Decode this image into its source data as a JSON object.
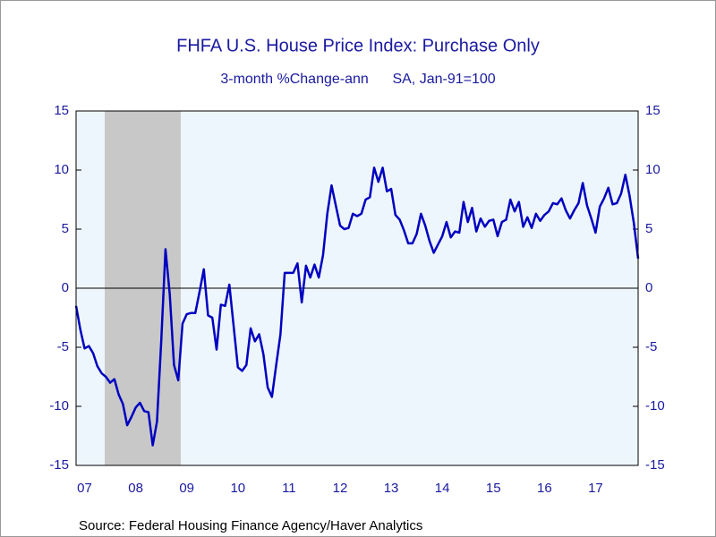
{
  "chart_data": {
    "type": "line",
    "title": "FHFA U.S. House Price Index: Purchase Only",
    "subtitle": "3-month %Change-ann      SA, Jan-91=100",
    "source": "Source:  Federal Housing Finance Agency/Haver Analytics",
    "categories": [
      null,
      null,
      "07",
      null,
      null,
      null,
      null,
      null,
      null,
      null,
      null,
      null,
      null,
      null,
      "08",
      null,
      null,
      null,
      null,
      null,
      null,
      null,
      null,
      null,
      null,
      null,
      "09",
      null,
      null,
      null,
      null,
      null,
      null,
      null,
      null,
      null,
      null,
      null,
      "10",
      null,
      null,
      null,
      null,
      null,
      null,
      null,
      null,
      null,
      null,
      null,
      "11",
      null,
      null,
      null,
      null,
      null,
      null,
      null,
      null,
      null,
      null,
      null,
      "12",
      null,
      null,
      null,
      null,
      null,
      null,
      null,
      null,
      null,
      null,
      null,
      "13",
      null,
      null,
      null,
      null,
      null,
      null,
      null,
      null,
      null,
      null,
      null,
      "14",
      null,
      null,
      null,
      null,
      null,
      null,
      null,
      null,
      null,
      null,
      null,
      "15",
      null,
      null,
      null,
      null,
      null,
      null,
      null,
      null,
      null,
      null,
      null,
      "16",
      null,
      null,
      null,
      null,
      null,
      null,
      null,
      null,
      null,
      null,
      null,
      "17",
      null,
      null,
      null,
      null,
      null,
      null,
      null,
      null,
      null,
      null
    ],
    "series": [
      {
        "color": "#0000c0",
        "values": [
          -1.5,
          -3.5,
          -5.1,
          -4.9,
          -5.5,
          -6.6,
          -7.2,
          -7.5,
          -8.0,
          -7.7,
          -9.0,
          -9.8,
          -11.6,
          -10.9,
          -10.1,
          -9.7,
          -10.4,
          -10.5,
          -13.3,
          -11.3,
          -4.5,
          3.3,
          -0.5,
          -6.5,
          -7.8,
          -3.0,
          -2.2,
          -2.1,
          -2.1,
          -0.3,
          1.6,
          -2.3,
          -2.5,
          -5.2,
          -1.4,
          -1.5,
          0.3,
          -3.2,
          -6.7,
          -7.0,
          -6.5,
          -3.4,
          -4.5,
          -3.9,
          -5.6,
          -8.4,
          -9.2,
          -6.5,
          -3.9,
          1.3,
          1.3,
          1.3,
          2.1,
          -1.2,
          1.9,
          0.9,
          2.0,
          0.9,
          2.8,
          6.3,
          8.7,
          7.0,
          5.3,
          5.0,
          5.1,
          6.3,
          6.1,
          6.3,
          7.5,
          7.7,
          10.2,
          9.0,
          10.2,
          8.2,
          8.4,
          6.2,
          5.8,
          4.9,
          3.8,
          3.8,
          4.6,
          6.3,
          5.3,
          4.0,
          3.0,
          3.7,
          4.4,
          5.6,
          4.3,
          4.8,
          4.7,
          7.3,
          5.6,
          6.8,
          4.8,
          5.9,
          5.2,
          5.7,
          5.8,
          4.4,
          5.6,
          5.8,
          7.5,
          6.5,
          7.3,
          5.2,
          6.0,
          5.1,
          6.3,
          5.7,
          6.2,
          6.5,
          7.2,
          7.1,
          7.6,
          6.6,
          5.9,
          6.6,
          7.2,
          8.9,
          7.0,
          5.9,
          4.7,
          6.9,
          7.6,
          8.5,
          7.1,
          7.2,
          8.0,
          9.6,
          7.8,
          5.5,
          2.5
        ]
      }
    ],
    "ylim": [
      -15,
      15
    ],
    "yticks": [
      -15,
      -10,
      -5,
      0,
      5,
      10,
      15
    ],
    "y2lim": [
      -15,
      15
    ],
    "y2ticks": [
      -15,
      -10,
      -5,
      0,
      5,
      10,
      15
    ]
  }
}
